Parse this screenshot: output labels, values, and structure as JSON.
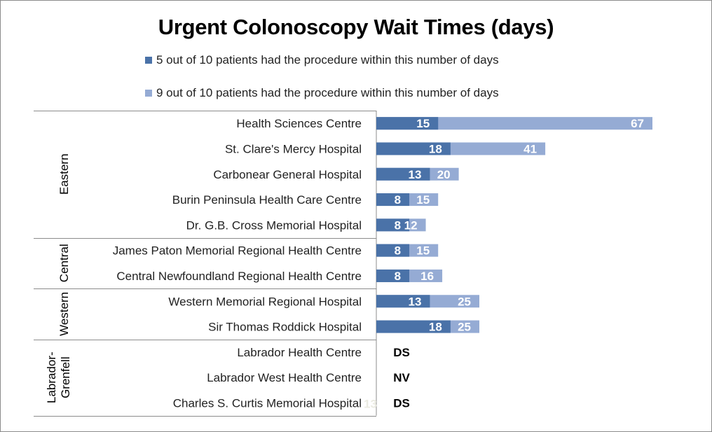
{
  "chart_data": {
    "type": "bar",
    "orientation": "horizontal",
    "title": "Urgent Colonoscopy Wait Times (days)",
    "legend_placement": "top",
    "grid": false,
    "xlim": [
      0,
      67
    ],
    "colors": {
      "median": "#4a72a8",
      "p90": "#95abd4"
    },
    "series": [
      {
        "name": "5 out of 10 patients had the procedure within this number of days",
        "key": "median"
      },
      {
        "name": "9 out of 10 patients had the procedure within this number of days",
        "key": "p90"
      }
    ],
    "regions": [
      {
        "name": "Eastern",
        "rows": [
          0,
          1,
          2,
          3,
          4
        ]
      },
      {
        "name": "Central",
        "rows": [
          5,
          6
        ]
      },
      {
        "name": "Western",
        "rows": [
          7,
          8
        ]
      },
      {
        "name": "Labrador-\nGrenfell",
        "lines": [
          "Labrador-",
          "Grenfell"
        ],
        "rows": [
          9,
          10,
          11
        ]
      }
    ],
    "categories": [
      "Health Sciences Centre",
      "St. Clare's Mercy Hospital",
      "Carbonear General Hospital",
      "Burin Peninsula Health Care Centre",
      "Dr. G.B. Cross Memorial Hospital",
      "James Paton Memorial Regional Health Centre",
      "Central Newfoundland Regional Health Centre",
      "Western Memorial Regional Hospital",
      "Sir Thomas Roddick Hospital",
      "Labrador Health Centre",
      "Labrador West Health Centre",
      "Charles S. Curtis Memorial Hospital"
    ],
    "median": [
      15,
      18,
      13,
      8,
      8,
      8,
      8,
      13,
      18,
      null,
      null,
      null
    ],
    "p90": [
      67,
      41,
      20,
      15,
      12,
      15,
      16,
      25,
      25,
      null,
      null,
      null
    ],
    "text_values": [
      null,
      null,
      null,
      null,
      null,
      null,
      null,
      null,
      null,
      "DS",
      "NV",
      "DS"
    ],
    "annotations": [
      {
        "row": 11,
        "text": "13",
        "faint": true
      }
    ]
  }
}
